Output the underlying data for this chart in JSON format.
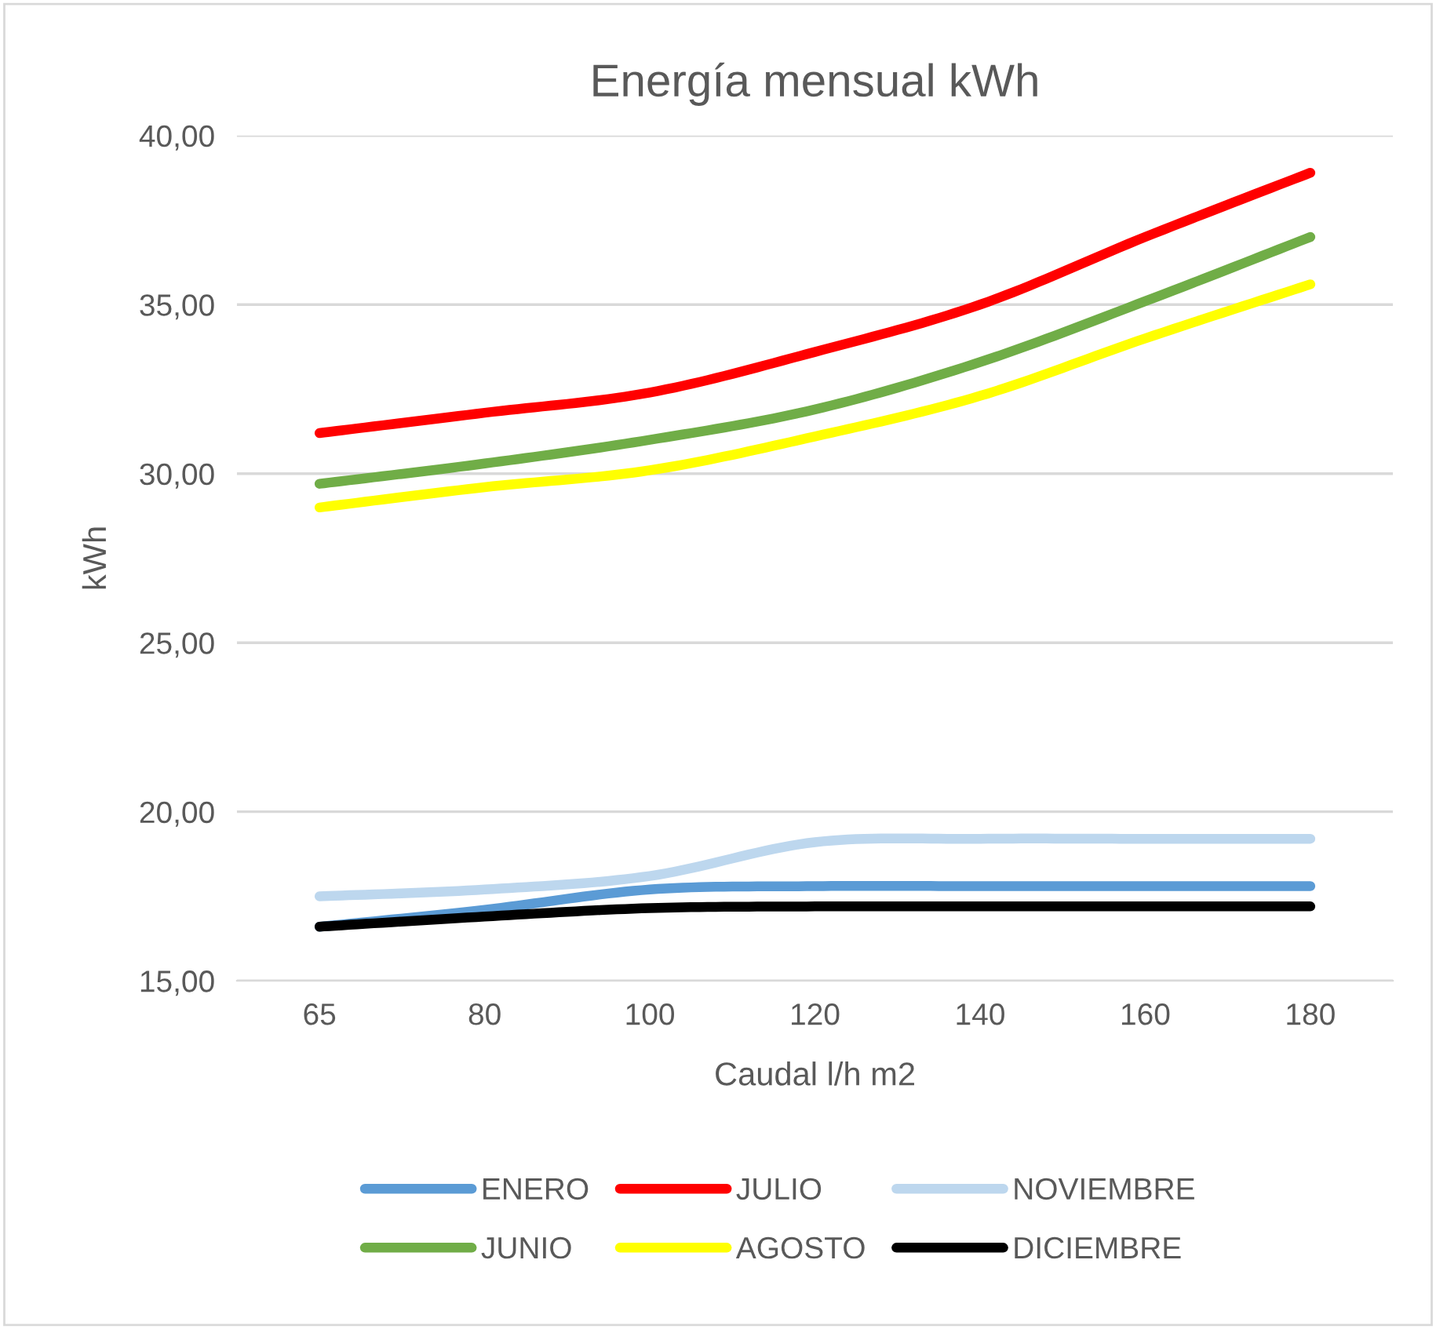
{
  "chart_data": {
    "type": "line",
    "title": "Energía mensual kWh",
    "xlabel": "Caudal l/h m2",
    "ylabel": "kWh",
    "categories": [
      "65",
      "80",
      "100",
      "120",
      "140",
      "160",
      "180"
    ],
    "series": [
      {
        "name": "ENERO",
        "color": "#5b9bd5",
        "values": [
          16.6,
          17.1,
          17.7,
          17.8,
          17.8,
          17.8,
          17.8
        ]
      },
      {
        "name": "JUNIO",
        "color": "#70ad47",
        "values": [
          29.7,
          30.3,
          31.0,
          31.9,
          33.3,
          35.1,
          37.0
        ]
      },
      {
        "name": "JULIO",
        "color": "#ff0000",
        "values": [
          31.2,
          31.8,
          32.4,
          33.6,
          35.0,
          37.0,
          38.9
        ]
      },
      {
        "name": "AGOSTO",
        "color": "#ffff00",
        "values": [
          29.0,
          29.6,
          30.1,
          31.1,
          32.3,
          34.0,
          35.6
        ]
      },
      {
        "name": "NOVIEMBRE",
        "color": "#bdd7ee",
        "values": [
          17.5,
          17.7,
          18.1,
          19.1,
          19.2,
          19.2,
          19.2
        ]
      },
      {
        "name": "DICIEMBRE",
        "color": "#000000",
        "values": [
          16.6,
          16.9,
          17.15,
          17.2,
          17.2,
          17.2,
          17.2
        ]
      }
    ],
    "ylim": [
      15,
      40
    ],
    "yticks": [
      {
        "value": 15,
        "label": "15,00"
      },
      {
        "value": 20,
        "label": "20,00"
      },
      {
        "value": 25,
        "label": "25,00"
      },
      {
        "value": 30,
        "label": "30,00"
      },
      {
        "value": 35,
        "label": "35,00"
      },
      {
        "value": 40,
        "label": "40,00"
      }
    ],
    "grid": "y",
    "legend": "bottom",
    "marker": "none",
    "line_style": "solid"
  }
}
